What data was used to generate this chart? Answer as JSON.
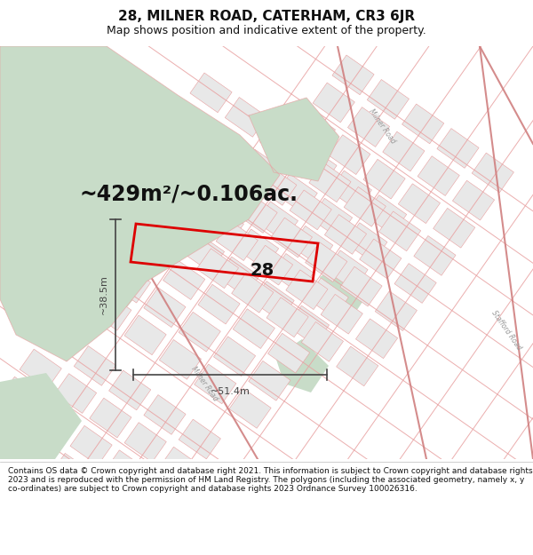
{
  "title": "28, MILNER ROAD, CATERHAM, CR3 6JR",
  "subtitle": "Map shows position and indicative extent of the property.",
  "area_text": "~429m²/~0.106ac.",
  "label_28": "28",
  "dim_width": "~51.4m",
  "dim_height": "~38.5m",
  "footer": "Contains OS data © Crown copyright and database right 2021. This information is subject to Crown copyright and database rights 2023 and is reproduced with the permission of HM Land Registry. The polygons (including the associated geometry, namely x, y co-ordinates) are subject to Crown copyright and database rights 2023 Ordnance Survey 100026316.",
  "bg_map_color": "#ffffff",
  "green_color": "#c8dcc8",
  "block_fill_color": "#e8e8e8",
  "road_line_color": "#e8a0a0",
  "road_line_color2": "#d08080",
  "highlight_rect_color": "#dd0000",
  "dim_line_color": "#444444",
  "text_color": "#111111",
  "footer_color": "#111111",
  "road_label_color": "#999999",
  "title_fontsize": 11,
  "subtitle_fontsize": 9,
  "area_fontsize": 17,
  "label_fontsize": 14,
  "dim_fontsize": 8,
  "footer_fontsize": 6.5
}
